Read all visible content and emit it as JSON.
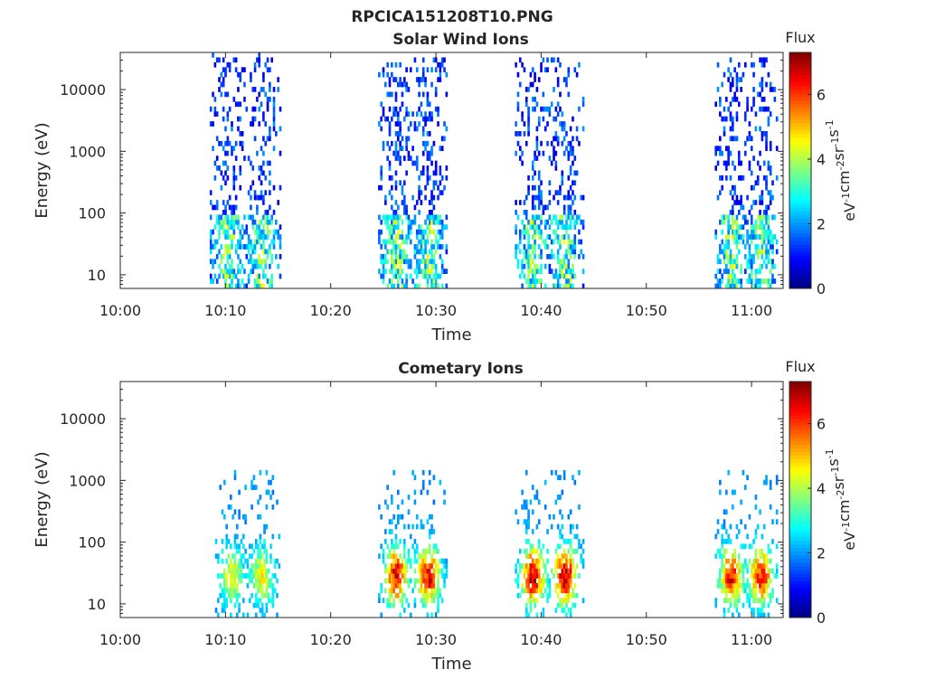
{
  "figure_title": "RPCICA151208T10.PNG",
  "chart_data": [
    {
      "type": "heatmap",
      "title": "Solar Wind Ions",
      "xlabel": "Time",
      "ylabel": "Energy (eV)",
      "x_ticks": [
        "10:00",
        "10:10",
        "10:20",
        "10:30",
        "10:40",
        "10:50",
        "11:00"
      ],
      "x_tick_minutes": [
        0,
        10,
        20,
        30,
        40,
        50,
        60
      ],
      "xlim_minutes": [
        0,
        63
      ],
      "y_scale": "log",
      "ylim": [
        6,
        40000
      ],
      "y_ticks": [
        "10",
        "100",
        "1000",
        "10000"
      ],
      "y_tick_values": [
        10,
        100,
        1000,
        10000
      ],
      "colorbar": {
        "title": "Flux",
        "label": "eV-1cm-2sr-1s-1",
        "ticks": [
          "0",
          "2",
          "4",
          "6"
        ],
        "tick_values": [
          0,
          2,
          4,
          6
        ],
        "range": [
          0,
          7.3
        ],
        "colormap": "jet"
      },
      "bursts": [
        {
          "start_min": 8.5,
          "end_min": 15.2,
          "peak_flux": 4.2
        },
        {
          "start_min": 24.5,
          "end_min": 31.0,
          "peak_flux": 4.8
        },
        {
          "start_min": 37.5,
          "end_min": 44.0,
          "peak_flux": 5.0
        },
        {
          "start_min": 56.5,
          "end_min": 62.5,
          "peak_flux": 4.6
        }
      ]
    },
    {
      "type": "heatmap",
      "title": "Cometary Ions",
      "xlabel": "Time",
      "ylabel": "Energy (eV)",
      "x_ticks": [
        "10:00",
        "10:10",
        "10:20",
        "10:30",
        "10:40",
        "10:50",
        "11:00"
      ],
      "x_tick_minutes": [
        0,
        10,
        20,
        30,
        40,
        50,
        60
      ],
      "xlim_minutes": [
        0,
        63
      ],
      "y_scale": "log",
      "ylim": [
        6,
        40000
      ],
      "y_ticks": [
        "10",
        "100",
        "1000",
        "10000"
      ],
      "y_tick_values": [
        10,
        100,
        1000,
        10000
      ],
      "colorbar": {
        "title": "Flux",
        "label": "eV-1cm-2sr-1s-1",
        "ticks": [
          "0",
          "2",
          "4",
          "6"
        ],
        "tick_values": [
          0,
          2,
          4,
          6
        ],
        "range": [
          0,
          7.3
        ],
        "colormap": "jet"
      },
      "bursts": [
        {
          "start_min": 9.0,
          "end_min": 15.0,
          "peak_flux": 4.5
        },
        {
          "start_min": 24.5,
          "end_min": 31.0,
          "peak_flux": 6.5
        },
        {
          "start_min": 37.5,
          "end_min": 44.0,
          "peak_flux": 6.8
        },
        {
          "start_min": 56.5,
          "end_min": 62.5,
          "peak_flux": 6.3
        }
      ]
    }
  ]
}
